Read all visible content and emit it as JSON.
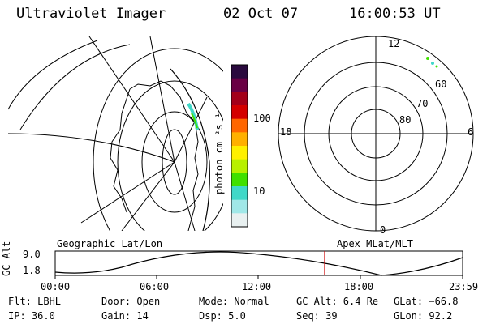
{
  "header": {
    "title": "Ultraviolet Imager",
    "date": "02 Oct 07",
    "time": "16:00:53 UT"
  },
  "colorbar": {
    "label": "photon cm⁻²s⁻¹",
    "ticks": [
      "100",
      "10"
    ],
    "colors": [
      "#2a0a3e",
      "#6a0044",
      "#a3001a",
      "#d40000",
      "#ff6600",
      "#ffb000",
      "#fff000",
      "#b8f000",
      "#40e000",
      "#40d8c8",
      "#a0e8e8",
      "#e8f0f0"
    ]
  },
  "polar_plot": {
    "mlt_labels": {
      "top": "12",
      "left": "18",
      "right": "6",
      "bottom": "0"
    },
    "lat_labels": [
      "60",
      "70",
      "80"
    ]
  },
  "geo_label": "Geographic Lat/Lon",
  "apex_label": "Apex MLat/MLT",
  "orbit_plot": {
    "ylabel": "GC Alt",
    "y_ticks": [
      "9.0",
      "1.8"
    ],
    "x_ticks": [
      "00:00",
      "06:00",
      "12:00",
      "18:00",
      "23:59"
    ],
    "current_time_marker": "16:00:53",
    "marker_color": "#cc0000"
  },
  "info": {
    "flt": "Flt: LBHL",
    "ip": "IP: 36.0",
    "door": "Door: Open",
    "gain": "Gain: 14",
    "mode": "Mode: Normal",
    "dsp": "Dsp:    5.0",
    "gcalt": "GC Alt: 6.4 Re",
    "seq": "Seq: 39",
    "glat": "GLat: −66.8",
    "glon": "GLon:  92.2"
  }
}
